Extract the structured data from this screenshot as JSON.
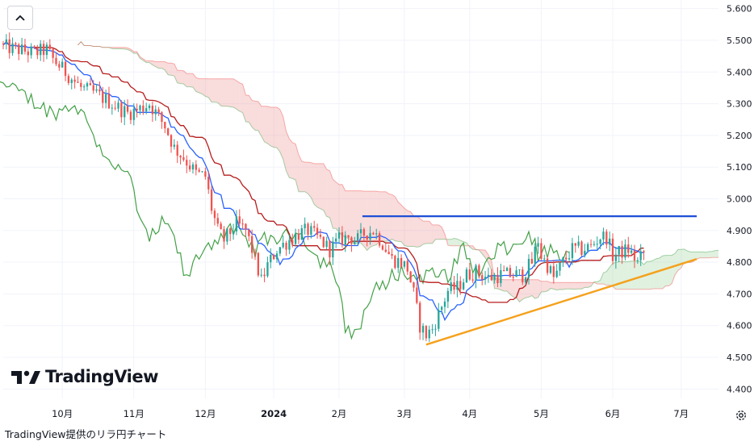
{
  "caption": "TradingView提供のリラ円チャート",
  "brand": {
    "name": "TradingView"
  },
  "icons": {
    "collapse": "chevron-up-icon",
    "settings": "gear-icon",
    "logo": "tradingview-logo-icon"
  },
  "chart_data": {
    "type": "candlestick",
    "indicator": "ichimoku",
    "y_ticks": [
      "5.600",
      "5.500",
      "5.400",
      "5.300",
      "5.200",
      "5.100",
      "5.000",
      "4.900",
      "4.800",
      "4.700",
      "4.600",
      "4.500",
      "4.400"
    ],
    "ylim": [
      4.35,
      5.65
    ],
    "x_ticks": [
      "10月",
      "11月",
      "12月",
      "2024",
      "2月",
      "3月",
      "4月",
      "5月",
      "6月",
      "7月"
    ],
    "x_tick_bold": [
      false,
      false,
      false,
      true,
      false,
      false,
      false,
      false,
      false,
      false
    ],
    "x_domain": [
      0,
      230
    ],
    "x_tick_pos": [
      19,
      42,
      65,
      87,
      108,
      129,
      150,
      173,
      196,
      218
    ],
    "grid": true,
    "colors": {
      "up": "#26a69a",
      "down": "#ef5350",
      "tenkan": "#2962ff",
      "kijun": "#b71c1c",
      "chikou": "#43a047",
      "cloud_bull": "#a5d6a7",
      "cloud_bear": "#ef9a9a",
      "resistance": "#1e4fd6",
      "support": "#f5a11c"
    },
    "close_anchors": [
      [
        0,
        5.48
      ],
      [
        5,
        5.47
      ],
      [
        10,
        5.46
      ],
      [
        14,
        5.47
      ],
      [
        16,
        5.44
      ],
      [
        20,
        5.4
      ],
      [
        25,
        5.35
      ],
      [
        30,
        5.33
      ],
      [
        35,
        5.3
      ],
      [
        40,
        5.27
      ],
      [
        43,
        5.28
      ],
      [
        47,
        5.3
      ],
      [
        52,
        5.23
      ],
      [
        55,
        5.16
      ],
      [
        58,
        5.13
      ],
      [
        62,
        5.08
      ],
      [
        65,
        5.07
      ],
      [
        67,
        4.97
      ],
      [
        69,
        4.9
      ],
      [
        71,
        4.87
      ],
      [
        75,
        4.92
      ],
      [
        78,
        4.9
      ],
      [
        80,
        4.84
      ],
      [
        83,
        4.74
      ],
      [
        85,
        4.79
      ],
      [
        88,
        4.84
      ],
      [
        92,
        4.87
      ],
      [
        95,
        4.89
      ],
      [
        98,
        4.9
      ],
      [
        102,
        4.87
      ],
      [
        105,
        4.84
      ],
      [
        108,
        4.87
      ],
      [
        111,
        4.88
      ],
      [
        114,
        4.87
      ],
      [
        116,
        4.89
      ],
      [
        119,
        4.9
      ],
      [
        122,
        4.86
      ],
      [
        125,
        4.81
      ],
      [
        128,
        4.8
      ],
      [
        130,
        4.78
      ],
      [
        132,
        4.7
      ],
      [
        134,
        4.6
      ],
      [
        136,
        4.57
      ],
      [
        138,
        4.59
      ],
      [
        141,
        4.66
      ],
      [
        143,
        4.71
      ],
      [
        146,
        4.72
      ],
      [
        149,
        4.76
      ],
      [
        152,
        4.77
      ],
      [
        156,
        4.75
      ],
      [
        160,
        4.76
      ],
      [
        164,
        4.76
      ],
      [
        167,
        4.76
      ],
      [
        170,
        4.8
      ],
      [
        172,
        4.87
      ],
      [
        173,
        4.82
      ],
      [
        175,
        4.79
      ],
      [
        177,
        4.75
      ],
      [
        180,
        4.8
      ],
      [
        183,
        4.84
      ],
      [
        186,
        4.84
      ],
      [
        189,
        4.85
      ],
      [
        192,
        4.88
      ],
      [
        194,
        4.88
      ],
      [
        196,
        4.82
      ],
      [
        198,
        4.83
      ],
      [
        201,
        4.84
      ],
      [
        204,
        4.8
      ],
      [
        206,
        4.83
      ]
    ],
    "resistance": {
      "value": 4.945,
      "from_x": 115.5,
      "to_x": 223
    },
    "support": {
      "from": [
        136,
        4.54
      ],
      "to": [
        223,
        4.81
      ]
    }
  }
}
